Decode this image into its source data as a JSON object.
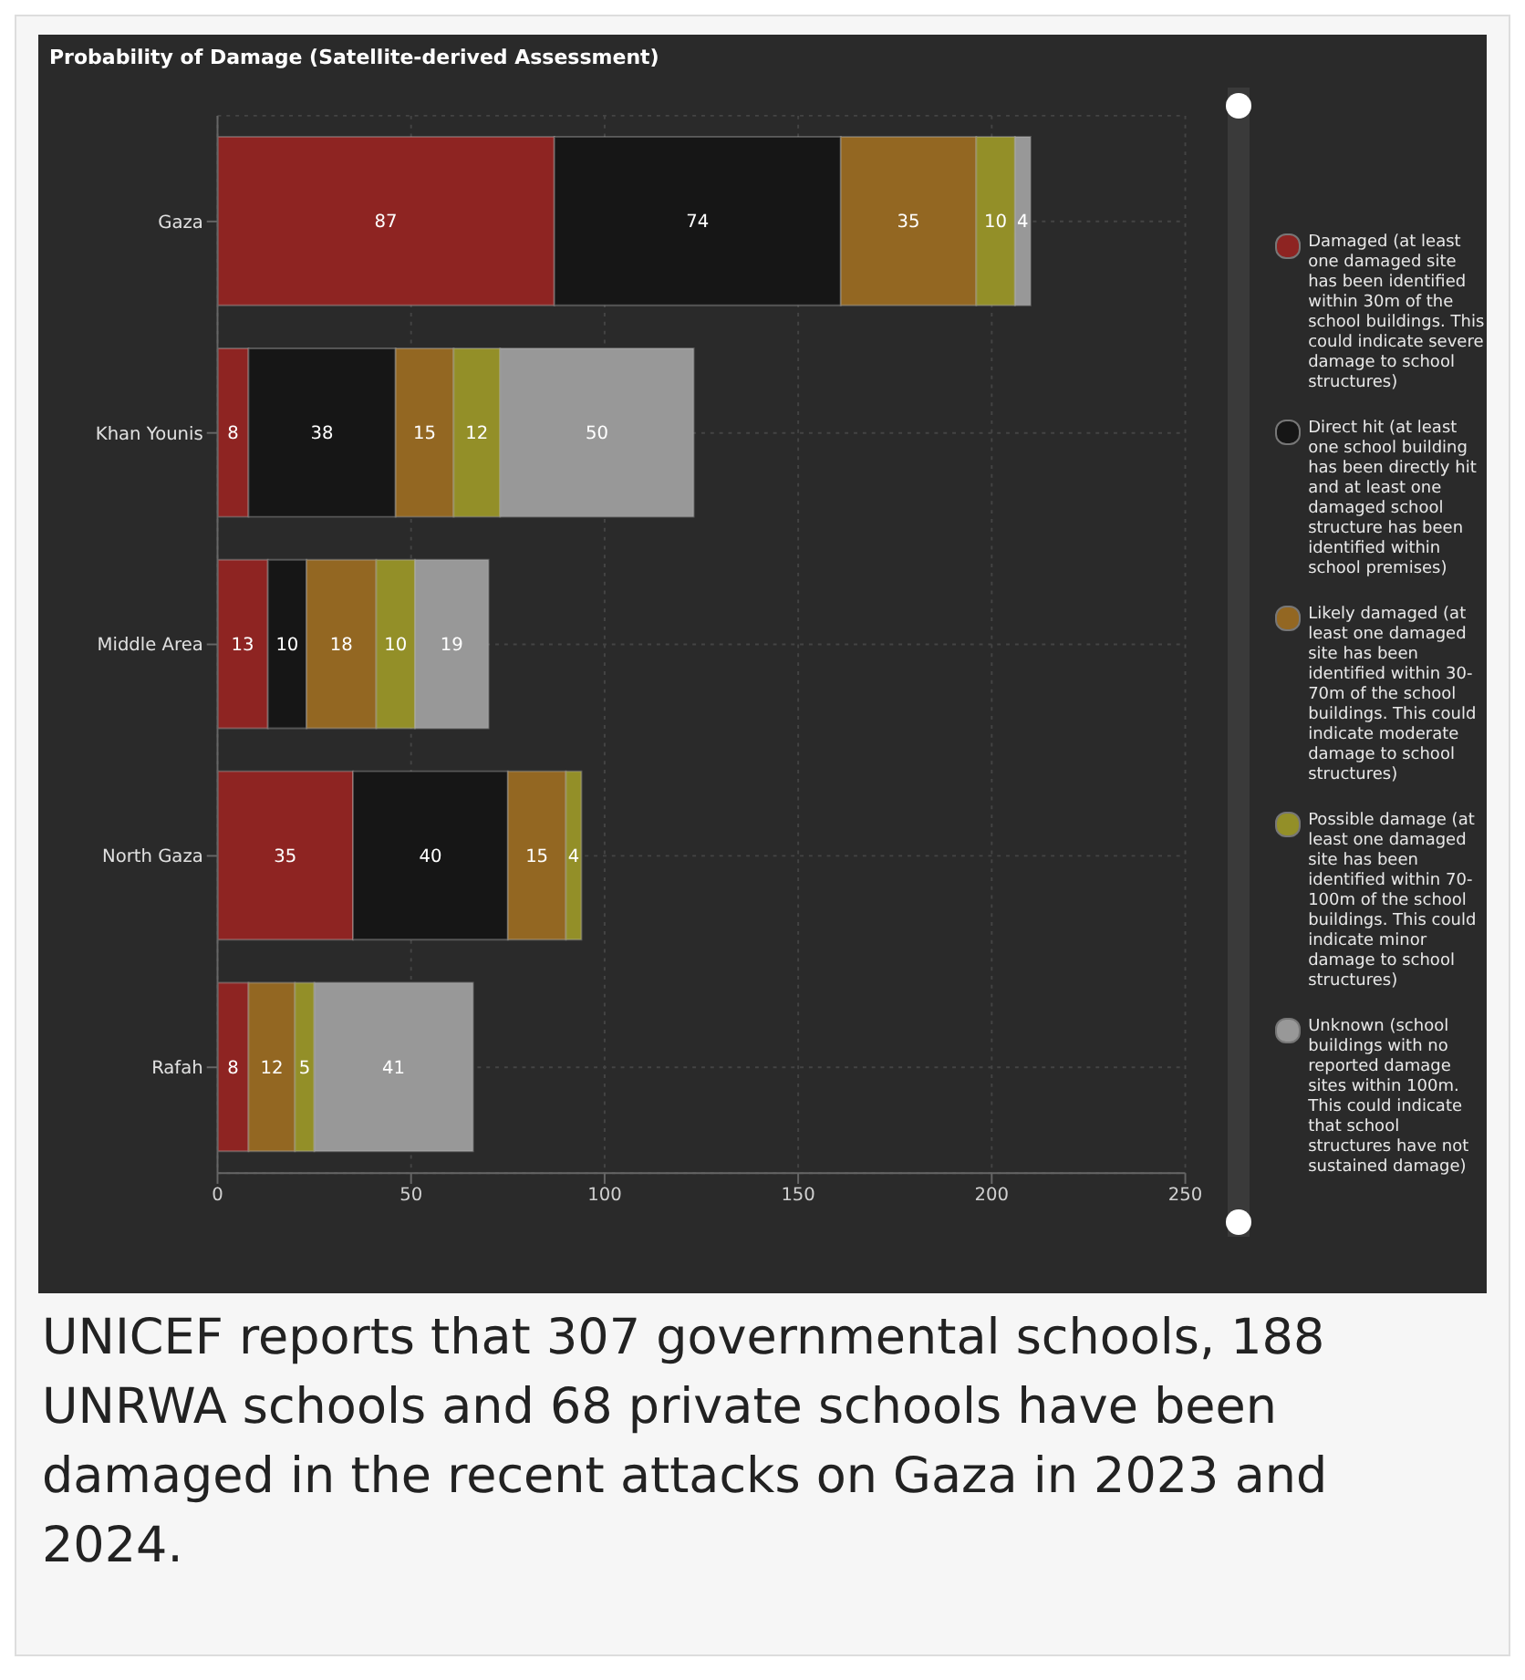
{
  "chart_data": {
    "type": "bar",
    "orientation": "horizontal",
    "stacked": true,
    "title": "Probability of Damage (Satellite-derived Assessment)",
    "categories": [
      "Gaza",
      "Khan Younis",
      "Middle Area",
      "North Gaza",
      "Rafah"
    ],
    "series": [
      {
        "name": "Damaged (at least one damaged site has been identified within 30m of the school buildings. This could indicate severe damage to school structures)",
        "color": "#8e2422",
        "values": [
          87,
          8,
          13,
          35,
          8
        ]
      },
      {
        "name": "Direct hit (at least one school building has been directly hit and at least one damaged school structure has been identified within school premises)",
        "color": "#161616",
        "values": [
          74,
          38,
          10,
          40,
          null
        ]
      },
      {
        "name": "Likely damaged (at least one damaged site has been identified within 30-70m of the school buildings. This could indicate moderate damage to school structures)",
        "color": "#936722",
        "values": [
          35,
          15,
          18,
          15,
          12
        ]
      },
      {
        "name": "Possible damage (at least one damaged site has been identified within 70-100m of the school buildings. This could indicate minor damage to school structures)",
        "color": "#938f28",
        "values": [
          10,
          12,
          10,
          4,
          5
        ]
      },
      {
        "name": "Unknown (school buildings with no reported damage sites within 100m. This could indicate that school structures have not sustained damage)",
        "color": "#989898",
        "values": [
          4,
          50,
          19,
          null,
          41
        ]
      }
    ],
    "xlim": [
      0,
      250
    ],
    "xticks": [
      0,
      50,
      100,
      150,
      200,
      250
    ],
    "grid": true,
    "legend": "right",
    "data_labels": true,
    "annotations": [
      "UNICEF reports that 307 governmental schools, 188 UNRWA schools and 68 private schools have been damaged in the recent attacks on Gaza in 2023 and 2024."
    ]
  }
}
